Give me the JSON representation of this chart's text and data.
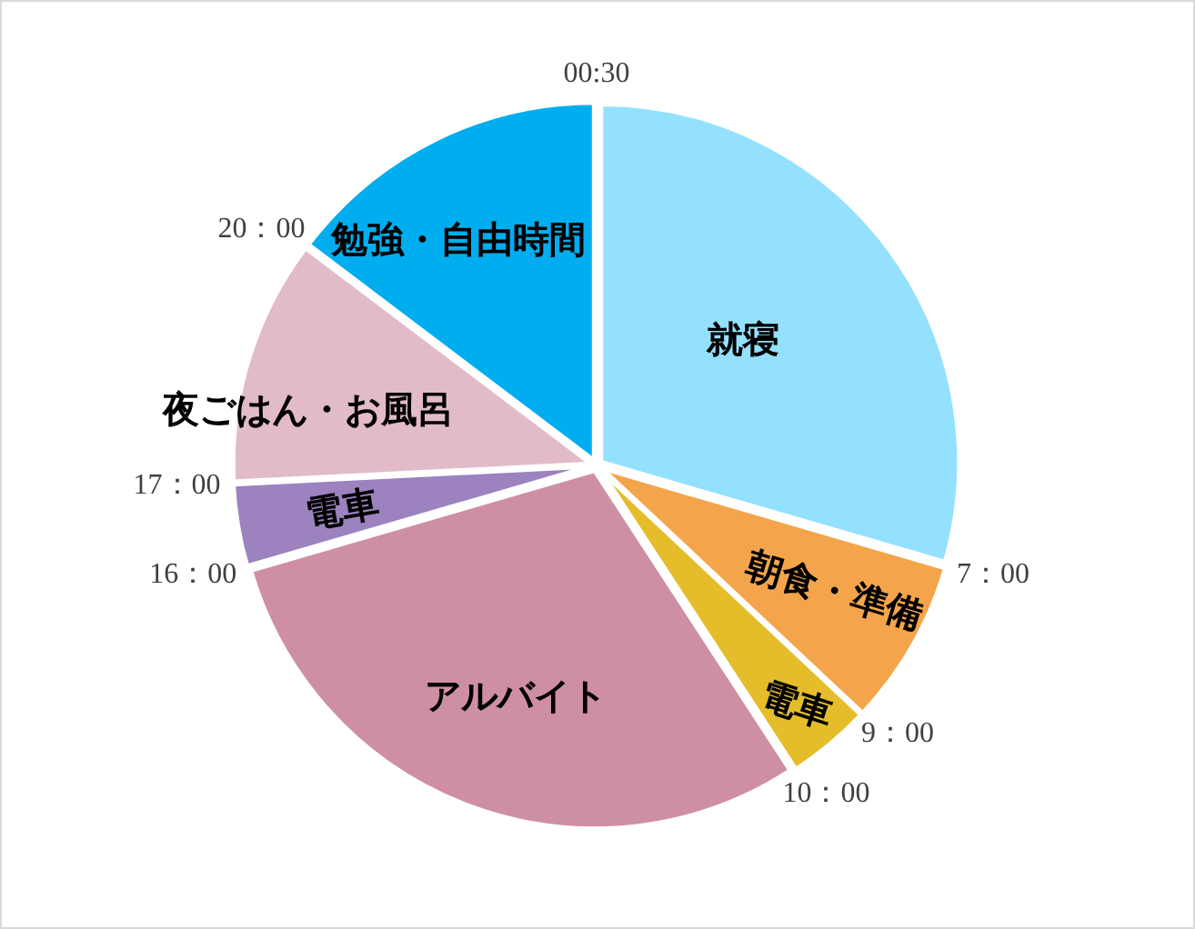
{
  "chart_data": {
    "type": "pie",
    "categories": [
      "就寝",
      "朝食・準備",
      "電車",
      "アルバイト",
      "電車",
      "夜ごはん・お風呂",
      "勉強・自由時間"
    ],
    "values": [
      29.5,
      7.5,
      3.8,
      29.7,
      3.7,
      11.1,
      14.7
    ],
    "colors": [
      "#93e1fe",
      "#f4a54b",
      "#e5bd2b",
      "#cf8fa3",
      "#9c82bf",
      "#e2bbc8",
      "#00aeef"
    ],
    "annotations": [
      "00:30",
      "7：00",
      "9：00",
      "10：00",
      "16：00",
      "17：00",
      "20：00"
    ]
  }
}
